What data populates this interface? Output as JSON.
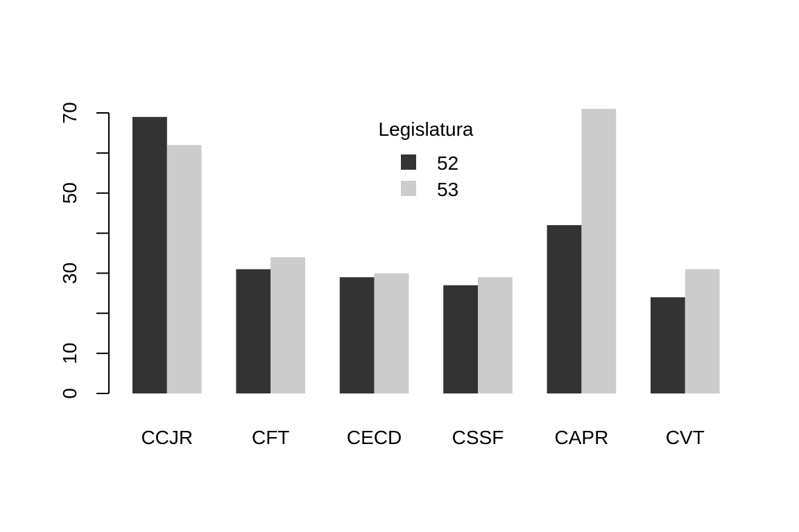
{
  "chart_data": {
    "type": "bar",
    "categories": [
      "CCJR",
      "CFT",
      "CECD",
      "CSSF",
      "CAPR",
      "CVT"
    ],
    "series": [
      {
        "name": "52",
        "values": [
          69,
          31,
          29,
          27,
          42,
          24
        ],
        "color": "#333333"
      },
      {
        "name": "53",
        "values": [
          62,
          34,
          30,
          29,
          71,
          31
        ],
        "color": "#cccccc"
      }
    ],
    "ylim": [
      0,
      70
    ],
    "y_ticks": [
      0,
      10,
      30,
      50,
      70
    ],
    "y_minor_ticks": [
      0,
      10,
      20,
      30,
      40,
      50,
      60,
      70
    ],
    "grid": false,
    "legend": {
      "title": "Legislatura",
      "placement": "top-center"
    }
  }
}
